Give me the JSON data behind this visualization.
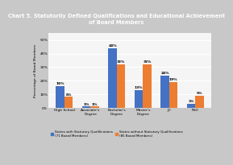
{
  "title": "Chart 5. Statutorily Defined Qualifications and Educational Achievement\nof Board Members",
  "categories": [
    "High School",
    "Associate's\nDegree",
    "Bachelor's\nDegree",
    "Master's\nDegree",
    "JD",
    "PhD"
  ],
  "series1_label": "States with Statutory Qualifications\n(71 Board Members)",
  "series2_label": "States without Statutory Qualifications\n(85 Board Members)",
  "series1_values": [
    16,
    1,
    44,
    13,
    24,
    3
  ],
  "series2_values": [
    8,
    1,
    32,
    32,
    19,
    9
  ],
  "series1_color": "#4472C4",
  "series2_color": "#ED7D31",
  "ylabel": "Percentage of Board Members",
  "ylim": [
    0,
    55
  ],
  "yticks": [
    0,
    10,
    20,
    30,
    40,
    50
  ],
  "title_bg_color": "#1F3864",
  "title_text_color": "#FFFFFF",
  "chart_bg_color": "#E8E8E8",
  "plot_bg_color": "#F5F5F5",
  "grid_color": "#FFFFFF",
  "outer_bg_color": "#C8C8C8",
  "title_fontsize": 4.8,
  "label_fontsize": 3.2,
  "tick_fontsize": 3.2,
  "bar_label_fontsize": 3.2,
  "legend_fontsize": 2.9
}
